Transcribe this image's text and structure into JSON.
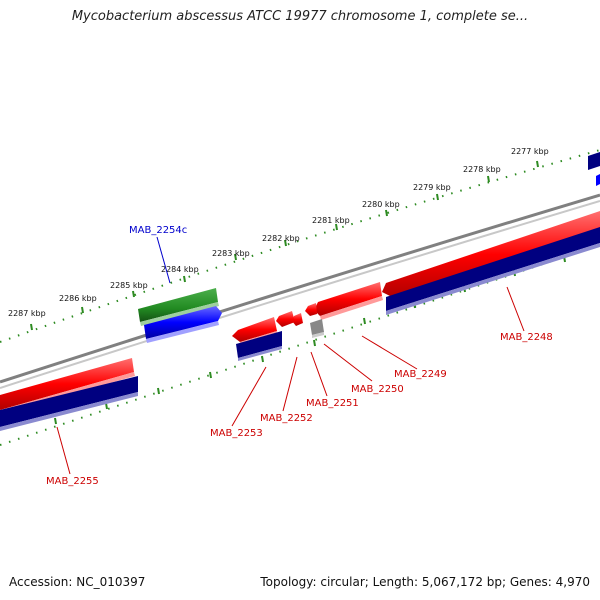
{
  "title": "Mycobacterium abscessus ATCC 19977 chromosome 1, complete se...",
  "footer": {
    "accession": "Accession: NC_010397",
    "summary": "Topology: circular; Length: 5,067,172 bp; Genes: 4,970"
  },
  "ruler": {
    "ticks": [
      "2277 kbp",
      "2278 kbp",
      "2279 kbp",
      "2280 kbp",
      "2281 kbp",
      "2282 kbp",
      "2283 kbp",
      "2284 kbp",
      "2285 kbp",
      "2286 kbp",
      "2287 kbp"
    ]
  },
  "genes": [
    {
      "label": "MAB_2248",
      "color": "#cc0000"
    },
    {
      "label": "MAB_2249",
      "color": "#cc0000"
    },
    {
      "label": "MAB_2250",
      "color": "#cc0000"
    },
    {
      "label": "MAB_2251",
      "color": "#cc0000"
    },
    {
      "label": "MAB_2252",
      "color": "#cc0000"
    },
    {
      "label": "MAB_2253",
      "color": "#cc0000"
    },
    {
      "label": "MAB_2254c",
      "color": "#0000cc"
    },
    {
      "label": "MAB_2255",
      "color": "#cc0000"
    }
  ],
  "colors": {
    "forward_cds": "#ff0000",
    "reverse_cds": "#0000ff",
    "gene_bar": "#000080",
    "rna": "#228b22",
    "tick": "#2e8b22",
    "backbone": "#808080"
  }
}
